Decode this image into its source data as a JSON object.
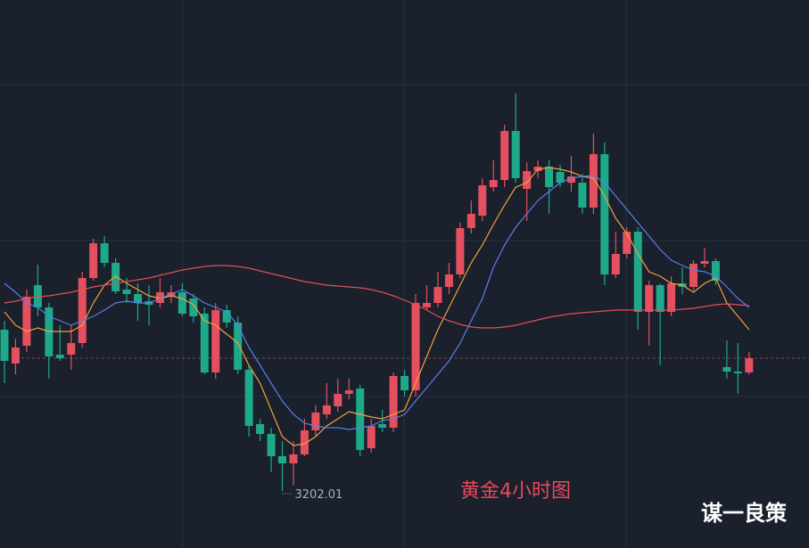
{
  "chart_data": {
    "type": "candlestick",
    "annotation": "黄金4小时图",
    "watermark": "谋一良策",
    "up_color": "#e5505f",
    "down_color": "#1ea98b",
    "ylim": [
      3170,
      3477.5
    ],
    "open": [
      3292.5,
      3273.5,
      3283.5,
      3317.5,
      3305,
      3278.5,
      3278.5,
      3285,
      3321.5,
      3341,
      3330,
      3315,
      3312.5,
      3308.5,
      3307.5,
      3311,
      3313.5,
      3310,
      3301.5,
      3268.5,
      3303.5,
      3296.5,
      3270,
      3239.5,
      3234,
      3221.5,
      3217.5,
      3222.5,
      3236,
      3245,
      3249.5,
      3256.5,
      3259.5,
      3226,
      3239.5,
      3237.5,
      3266.5,
      3258.5,
      3305,
      3307.5,
      3316.5,
      3323.5,
      3349.5,
      3356.5,
      3372.5,
      3376.5,
      3404,
      3371.5,
      3381.5,
      3384,
      3381,
      3375,
      3375,
      3361,
      3391,
      3323.5,
      3335,
      3347.5,
      3302.5,
      3317.5,
      3302.5,
      3318.5,
      3316.5,
      3329.5,
      3331,
      3271.5,
      3269,
      3268.5
    ],
    "high": [
      3297.5,
      3287.5,
      3315,
      3329,
      3307.5,
      3295,
      3295,
      3325,
      3343.5,
      3345,
      3332.5,
      3321.5,
      3318.5,
      3317.5,
      3321.5,
      3317.5,
      3318.5,
      3312.5,
      3305,
      3307.5,
      3306.5,
      3300,
      3272.5,
      3242.5,
      3237.5,
      3230,
      3230,
      3242.5,
      3250,
      3262.5,
      3265,
      3265,
      3261.5,
      3242.5,
      3247.5,
      3268.5,
      3270,
      3312.5,
      3317.5,
      3325,
      3330,
      3352.5,
      3365,
      3377.5,
      3387.5,
      3407.5,
      3425,
      3386.5,
      3387.5,
      3387.5,
      3385,
      3390,
      3380,
      3402.5,
      3397.5,
      3347.5,
      3350,
      3350,
      3320,
      3318.5,
      3322.5,
      3327.5,
      3331.5,
      3338.5,
      3332.5,
      3286.5,
      3285,
      3280
    ],
    "low": [
      3262.5,
      3267.5,
      3280,
      3300,
      3265,
      3275,
      3270,
      3282.5,
      3320,
      3327.5,
      3312.5,
      3307.5,
      3297.5,
      3295,
      3305,
      3307.5,
      3300,
      3296.5,
      3267.5,
      3265,
      3293.5,
      3267.5,
      3232.5,
      3230,
      3212.5,
      3202.01,
      3205,
      3221.5,
      3232.5,
      3242.5,
      3246.5,
      3253.5,
      3221.5,
      3223.5,
      3235,
      3235,
      3255,
      3255,
      3303.5,
      3305,
      3312.5,
      3321.5,
      3346.5,
      3353.5,
      3370,
      3372.5,
      3375,
      3353.5,
      3377.5,
      3357.5,
      3372.5,
      3370,
      3357.5,
      3357.5,
      3317.5,
      3321.5,
      3332.5,
      3292.5,
      3283.5,
      3272.5,
      3300,
      3312.5,
      3314.5,
      3327.5,
      3317.5,
      3265,
      3256.5,
      3267.5
    ],
    "close": [
      3275,
      3282.5,
      3311,
      3305,
      3277.5,
      3276.5,
      3285,
      3321.5,
      3341,
      3330,
      3314,
      3312.5,
      3307.5,
      3306.5,
      3313.5,
      3313.5,
      3301.5,
      3300,
      3268.5,
      3303.5,
      3296.5,
      3270,
      3238.5,
      3234,
      3221.5,
      3217.5,
      3222.5,
      3236,
      3246,
      3250,
      3256.5,
      3258.5,
      3225,
      3238.5,
      3237.5,
      3266.5,
      3258.5,
      3307.5,
      3307.5,
      3316.5,
      3323.5,
      3349.5,
      3357.5,
      3373.5,
      3376.5,
      3404,
      3377.5,
      3381.5,
      3384,
      3372.5,
      3375,
      3378.5,
      3361,
      3391,
      3323.5,
      3335,
      3347.5,
      3302.5,
      3317.5,
      3302.5,
      3318.5,
      3316.5,
      3329.5,
      3331,
      3320,
      3269,
      3268,
      3276.5
    ],
    "low_label_index": 25,
    "overlays": [
      {
        "color": "#f0a23a",
        "values": [
          3302.5,
          3295,
          3291.5,
          3293.5,
          3291.5,
          3291.5,
          3291.5,
          3295,
          3307.5,
          3317.5,
          3322.5,
          3318.5,
          3315,
          3311.5,
          3310,
          3311.5,
          3310,
          3306.5,
          3297.5,
          3295,
          3290,
          3285,
          3272.5,
          3262.5,
          3247.5,
          3232.5,
          3227.5,
          3228.5,
          3232.5,
          3238.5,
          3242.5,
          3246.5,
          3245,
          3243.5,
          3242.5,
          3245,
          3247.5,
          3262.5,
          3277.5,
          3292.5,
          3305,
          3317.5,
          3330,
          3340,
          3351.5,
          3362.5,
          3372.5,
          3375,
          3382.5,
          3383.5,
          3382.5,
          3381,
          3378.5,
          3377.5,
          3367.5,
          3355,
          3346.5,
          3335,
          3325,
          3322.5,
          3318.5,
          3317.5,
          3313.5,
          3318.5,
          3321.5,
          3307.5,
          3300,
          3292.5
        ]
      },
      {
        "color": "#5b7fe6",
        "values": [
          3318.5,
          3313.5,
          3307.5,
          3305,
          3300,
          3297.5,
          3295,
          3297.5,
          3300,
          3303.5,
          3307.5,
          3308.5,
          3307.5,
          3307.5,
          3310,
          3312.5,
          3315,
          3311.5,
          3307.5,
          3305,
          3302.5,
          3295,
          3282.5,
          3272.5,
          3262.5,
          3252.5,
          3245,
          3240,
          3238.5,
          3237.5,
          3237.5,
          3236.5,
          3237.5,
          3238.5,
          3241.5,
          3242.5,
          3245,
          3252.5,
          3260,
          3267.5,
          3275,
          3285,
          3297.5,
          3310,
          3327.5,
          3340,
          3350,
          3357.5,
          3365,
          3370,
          3375,
          3377.5,
          3378.5,
          3379,
          3375,
          3367.5,
          3360,
          3352.5,
          3345,
          3337.5,
          3331.5,
          3328.5,
          3326,
          3325,
          3322.5,
          3316.5,
          3310,
          3305
        ]
      },
      {
        "color": "#e0505a",
        "values": [
          3307.5,
          3308.5,
          3310,
          3311,
          3311.5,
          3312.5,
          3313.5,
          3315,
          3316.5,
          3317.5,
          3318.5,
          3319.5,
          3320.5,
          3321.5,
          3323,
          3324.5,
          3326,
          3327,
          3328,
          3328.5,
          3328.5,
          3328,
          3327,
          3325.5,
          3324,
          3322.5,
          3321,
          3319.5,
          3318.5,
          3317.5,
          3317,
          3316.5,
          3316,
          3315,
          3313.5,
          3311.5,
          3309,
          3306.5,
          3303.5,
          3300,
          3297.5,
          3295.5,
          3294,
          3293.5,
          3293.5,
          3294,
          3295,
          3296.5,
          3298,
          3299.5,
          3300.5,
          3301.5,
          3302,
          3302.5,
          3303,
          3303.5,
          3303.5,
          3303.5,
          3303.5,
          3303.5,
          3303.5,
          3304,
          3304.5,
          3305.5,
          3306.5,
          3307,
          3306.5,
          3306
        ]
      }
    ]
  }
}
